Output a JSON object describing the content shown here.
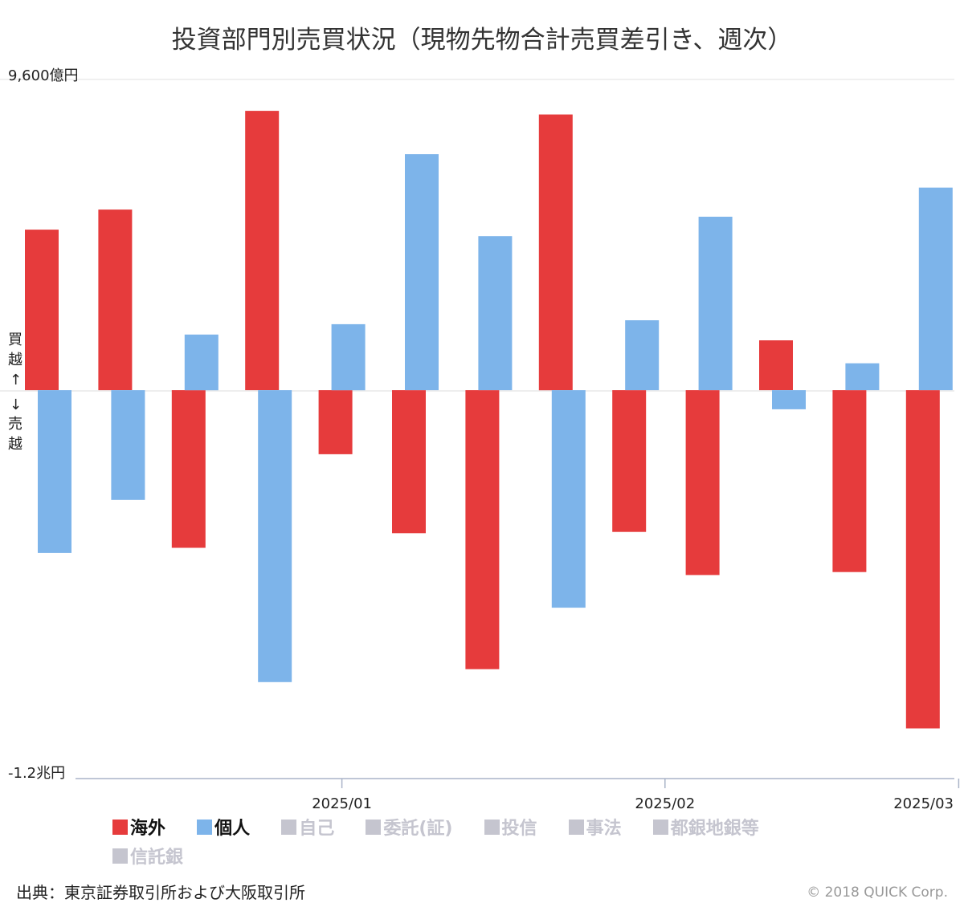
{
  "chart_data": {
    "type": "bar",
    "title": "投資部門別売買状況（現物先物合計売買差引き、週次）",
    "y_axis": {
      "top_label": "9,600億円",
      "bottom_label": "-1.2兆円",
      "min": -12000,
      "max": 9600,
      "side_label_top": [
        "買",
        "越",
        "↑"
      ],
      "side_label_bottom": [
        "↓",
        "売",
        "越"
      ]
    },
    "x_axis": {
      "ticks": [
        {
          "label": "2025/01",
          "position_week": 4.0
        },
        {
          "label": "2025/02",
          "position_week": 8.4
        },
        {
          "label": "2025/03",
          "position_week": 12.4
        }
      ]
    },
    "weeks": 13,
    "series": [
      {
        "name": "海外",
        "color": "#e63b3c",
        "values": [
          4960,
          5580,
          -4870,
          8630,
          -1980,
          -4420,
          -8620,
          8520,
          -4380,
          -5710,
          1540,
          -5620,
          -10450
        ]
      },
      {
        "name": "個人",
        "color": "#7db4ea",
        "values": [
          -5030,
          -3390,
          1720,
          -9020,
          2040,
          7290,
          4760,
          -6720,
          2160,
          5360,
          -590,
          830,
          6260
        ]
      }
    ],
    "legend": [
      {
        "name": "海外",
        "color": "#e63b3c",
        "active": true
      },
      {
        "name": "個人",
        "color": "#7db4ea",
        "active": true
      },
      {
        "name": "自己",
        "color": "#c5c5cf",
        "active": false
      },
      {
        "name": "委託(証)",
        "color": "#c5c5cf",
        "active": false
      },
      {
        "name": "投信",
        "color": "#c5c5cf",
        "active": false
      },
      {
        "name": "事法",
        "color": "#c5c5cf",
        "active": false
      },
      {
        "name": "都銀地銀等",
        "color": "#c5c5cf",
        "active": false
      },
      {
        "name": "信託銀",
        "color": "#c5c5cf",
        "active": false
      }
    ]
  },
  "footer": {
    "source": "出典：東京証券取引所および大阪取引所",
    "copyright": "© 2018 QUICK Corp."
  }
}
